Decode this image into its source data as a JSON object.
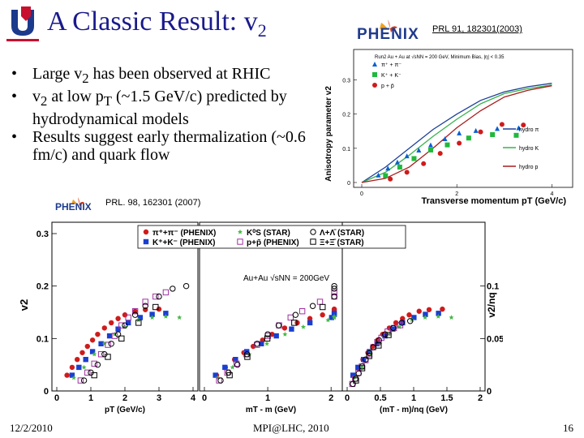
{
  "slide": {
    "title": "A Classic Result: v",
    "title_sub": "2",
    "ref_top": "PRL 91, 182301(2003)",
    "ref_bottom": "PRL. 98, 162301 (2007)",
    "bullets": [
      {
        "pre": "Large v",
        "sub": "2",
        "post": " has been observed at RHIC"
      },
      {
        "pre": "v",
        "sub": "2",
        "post": " at low p",
        "sub2": "T",
        "post2": " (~1.5 GeV/c) predicted by hydrodynamical models"
      },
      {
        "pre": "Results suggest early thermalization (~0.6 fm/c) and quark flow",
        "sub": "",
        "post": ""
      }
    ],
    "footer": {
      "date": "12/2/2010",
      "venue": "MPI@LHC, 2010",
      "page": "16"
    },
    "logo_top": "PHENIX",
    "logo_bottom": "PHENIX"
  },
  "chart_data": [
    {
      "type": "scatter",
      "title": "Run2 Au + Au at √sNN = 200 GeV, Minimum Bias, |η| < 0.35",
      "xlabel": "Transverse momentum pT (GeV/c)",
      "ylabel": "Anisotropy parameter v2",
      "xlim": [
        0,
        4.3
      ],
      "ylim": [
        0,
        0.37
      ],
      "xticks": [
        "0",
        "2",
        "4"
      ],
      "yticks": [
        "0",
        "0.1",
        "0.2",
        "0.3"
      ],
      "legend": "top-left",
      "series": [
        {
          "name": "π⁺ + π⁻",
          "marker": "triangle",
          "color": "#0a5fd0",
          "x": [
            0.35,
            0.55,
            0.75,
            0.95,
            1.2,
            1.45,
            1.75,
            2.05,
            2.4,
            2.85,
            3.3
          ],
          "y": [
            0.022,
            0.042,
            0.06,
            0.078,
            0.095,
            0.11,
            0.128,
            0.145,
            0.152,
            0.158,
            0.16
          ]
        },
        {
          "name": "K⁺ + K⁻",
          "marker": "square",
          "color": "#1fb93c",
          "x": [
            0.5,
            0.8,
            1.1,
            1.45,
            1.8,
            2.25,
            2.75,
            3.25
          ],
          "y": [
            0.02,
            0.045,
            0.07,
            0.095,
            0.11,
            0.13,
            0.14,
            0.138
          ]
        },
        {
          "name": "p + p̄",
          "marker": "circle",
          "color": "#d01b1b",
          "x": [
            0.6,
            0.95,
            1.3,
            1.65,
            2.05,
            2.5,
            2.95,
            3.4
          ],
          "y": [
            0.01,
            0.03,
            0.055,
            0.085,
            0.115,
            0.148,
            0.17,
            0.168
          ]
        },
        {
          "name": "hydro π",
          "line": true,
          "color": "#1c3f9a",
          "x": [
            0,
            0.5,
            1,
            1.5,
            2,
            2.5,
            3,
            3.5,
            4
          ],
          "y": [
            0,
            0.045,
            0.1,
            0.155,
            0.2,
            0.24,
            0.265,
            0.28,
            0.29
          ]
        },
        {
          "name": "hydro K",
          "line": true,
          "color": "#37b34a",
          "x": [
            0,
            0.5,
            1,
            1.5,
            2,
            2.5,
            3,
            3.5,
            4
          ],
          "y": [
            0,
            0.03,
            0.08,
            0.135,
            0.185,
            0.23,
            0.26,
            0.275,
            0.285
          ]
        },
        {
          "name": "hydro p",
          "line": true,
          "color": "#a81c1c",
          "x": [
            0,
            0.5,
            1,
            1.5,
            2,
            2.5,
            3,
            3.5,
            4
          ],
          "y": [
            0,
            0.012,
            0.045,
            0.1,
            0.16,
            0.21,
            0.25,
            0.27,
            0.283
          ]
        }
      ]
    },
    {
      "type": "scatter",
      "panels": [
        {
          "xlabel": "pT (GeV/c)",
          "xticks": [
            "0",
            "1",
            "2",
            "3",
            "4"
          ],
          "xlim": [
            0,
            4
          ]
        },
        {
          "xlabel": "mT - m (GeV)",
          "xticks": [
            "0",
            "1",
            "2"
          ],
          "xlim": [
            0,
            2.1
          ]
        },
        {
          "xlabel": "(mT - m)/nq (GeV)",
          "xticks": [
            "0",
            "0.5",
            "1",
            "1.5",
            "2"
          ],
          "xlim": [
            0,
            2
          ]
        }
      ],
      "ylabel_left": "v2",
      "yticks_left": [
        "0",
        "0.1",
        "0.2",
        "0.3"
      ],
      "ylim_left": [
        0,
        0.3
      ],
      "ylabel_right": "v2/nq",
      "yticks_right": [
        "0",
        "0.05",
        "0.1"
      ],
      "ylim_right": [
        0,
        0.15
      ],
      "annotation": "Au+Au √sNN = 200GeV",
      "legend": "top",
      "legend_entries": [
        {
          "label": "π⁺+π⁻ (PHENIX)",
          "color": "#d01b1b",
          "marker": "circle"
        },
        {
          "label": "K⁺+K⁻ (PHENIX)",
          "color": "#1a3fd0",
          "marker": "square"
        },
        {
          "label": "K⁰S (STAR)",
          "color": "#45b945",
          "marker": "star"
        },
        {
          "label": "p+p̄ (PHENIX)",
          "color": "#a030a0",
          "marker": "square-open"
        },
        {
          "label": "Λ+Λ̄ (STAR)",
          "color": "#000000",
          "marker": "circle-open"
        },
        {
          "label": "Ξ+Ξ̄ (STAR)",
          "color": "#000000",
          "marker": "square-open"
        }
      ],
      "series": [
        {
          "name": "π⁺+π⁻ (PHENIX)",
          "color": "#d01b1b",
          "marker": "circle",
          "x": [
            0.3,
            0.45,
            0.6,
            0.75,
            0.9,
            1.05,
            1.2,
            1.4,
            1.6,
            1.8,
            2.0,
            2.3,
            2.6,
            3.0
          ],
          "y": [
            0.03,
            0.045,
            0.06,
            0.073,
            0.085,
            0.097,
            0.108,
            0.12,
            0.13,
            0.138,
            0.145,
            0.152,
            0.155,
            0.156
          ]
        },
        {
          "name": "K⁺+K⁻ (PHENIX)",
          "color": "#1a3fd0",
          "marker": "square",
          "x": [
            0.45,
            0.65,
            0.85,
            1.05,
            1.3,
            1.55,
            1.8,
            2.1,
            2.45,
            2.8,
            3.2
          ],
          "y": [
            0.03,
            0.045,
            0.06,
            0.075,
            0.09,
            0.105,
            0.118,
            0.13,
            0.14,
            0.146,
            0.148
          ]
        },
        {
          "name": "K⁰S (STAR)",
          "color": "#45b945",
          "marker": "star",
          "x": [
            0.5,
            0.8,
            1.1,
            1.4,
            1.7,
            2.0,
            2.4,
            2.8,
            3.2,
            3.6
          ],
          "y": [
            0.025,
            0.045,
            0.07,
            0.09,
            0.108,
            0.122,
            0.135,
            0.14,
            0.142,
            0.14
          ]
        },
        {
          "name": "p+p̄ (PHENIX)",
          "color": "#a030a0",
          "marker": "square-open",
          "x": [
            0.7,
            0.9,
            1.1,
            1.3,
            1.5,
            1.7,
            1.9,
            2.1,
            2.3,
            2.6,
            2.9,
            3.2
          ],
          "y": [
            0.02,
            0.035,
            0.052,
            0.07,
            0.088,
            0.105,
            0.125,
            0.14,
            0.152,
            0.17,
            0.18,
            0.188
          ]
        },
        {
          "name": "Λ+Λ̄ (STAR)",
          "color": "#000000",
          "marker": "circle-open",
          "x": [
            0.8,
            1.0,
            1.2,
            1.4,
            1.6,
            1.8,
            2.0,
            2.3,
            2.6,
            3.0,
            3.4,
            3.8
          ],
          "y": [
            0.02,
            0.035,
            0.05,
            0.07,
            0.09,
            0.108,
            0.125,
            0.145,
            0.162,
            0.18,
            0.195,
            0.2
          ]
        },
        {
          "name": "Ξ+Ξ̄ (STAR)",
          "color": "#000000",
          "marker": "square-open",
          "x": [
            1.1,
            1.5,
            1.9,
            2.4,
            2.9
          ],
          "y": [
            0.03,
            0.065,
            0.1,
            0.13,
            0.16
          ]
        }
      ]
    }
  ]
}
